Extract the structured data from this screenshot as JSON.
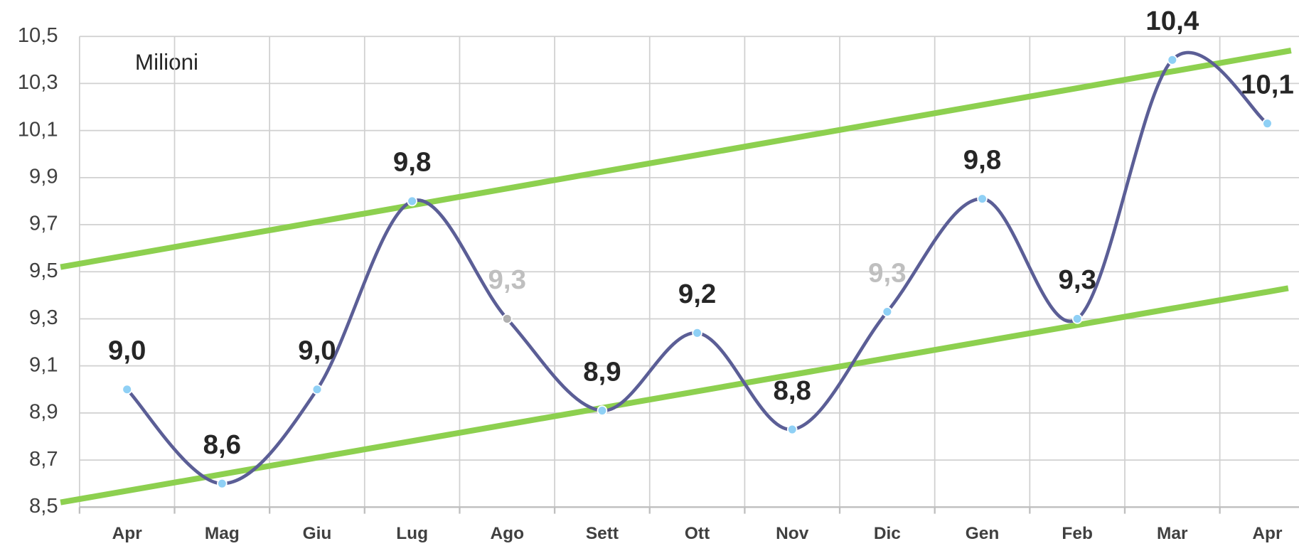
{
  "chart_data": {
    "type": "line",
    "annotation": "Milioni",
    "categories": [
      "Apr",
      "Mag",
      "Giu",
      "Lug",
      "Ago",
      "Sett",
      "Ott",
      "Nov",
      "Dic",
      "Gen",
      "Feb",
      "Mar",
      "Apr"
    ],
    "series": [
      {
        "color": "#5b5e96",
        "values": [
          9.0,
          8.6,
          9.0,
          9.8,
          9.3,
          8.91,
          9.24,
          8.83,
          9.33,
          9.81,
          9.3,
          10.4,
          10.13
        ],
        "value_labels": [
          "9,0",
          "8,6",
          "9,0",
          "9,8",
          "9,3",
          "8,9",
          "9,2",
          "8,8",
          "9,3",
          "9,8",
          "9,3",
          "10,4",
          "10,1"
        ],
        "point_colors": [
          "#8fd0f5",
          "#8fd0f5",
          "#8fd0f5",
          "#8fd0f5",
          "#b0b0b0",
          "#8fd0f5",
          "#8fd0f5",
          "#8fd0f5",
          "#8fd0f5",
          "#8fd0f5",
          "#8fd0f5",
          "#8fd0f5",
          "#8fd0f5"
        ],
        "label_colors": [
          "#262626",
          "#262626",
          "#262626",
          "#262626",
          "#bfbfbf",
          "#262626",
          "#262626",
          "#262626",
          "#bfbfbf",
          "#262626",
          "#262626",
          "#262626",
          "#262626"
        ]
      }
    ],
    "trend_lines": [
      {
        "color": "#8dd04f",
        "x": [
          -0.7,
          12.25
        ],
        "values": [
          9.52,
          10.44
        ]
      },
      {
        "color": "#8dd04f",
        "x": [
          -0.7,
          12.22
        ],
        "values": [
          8.52,
          9.43
        ]
      }
    ],
    "ylim": [
      8.5,
      10.5
    ],
    "yticks": [
      {
        "value": 8.5,
        "label": "8,5"
      },
      {
        "value": 8.7,
        "label": "8,7"
      },
      {
        "value": 8.9,
        "label": "8,9"
      },
      {
        "value": 9.1,
        "label": "9,1"
      },
      {
        "value": 9.3,
        "label": "9,3"
      },
      {
        "value": 9.5,
        "label": "9,5"
      },
      {
        "value": 9.7,
        "label": "9,7"
      },
      {
        "value": 9.9,
        "label": "9,9"
      },
      {
        "value": 10.1,
        "label": "10,1"
      },
      {
        "value": 10.3,
        "label": "10,3"
      },
      {
        "value": 10.5,
        "label": "10,5"
      }
    ],
    "grid": true
  }
}
